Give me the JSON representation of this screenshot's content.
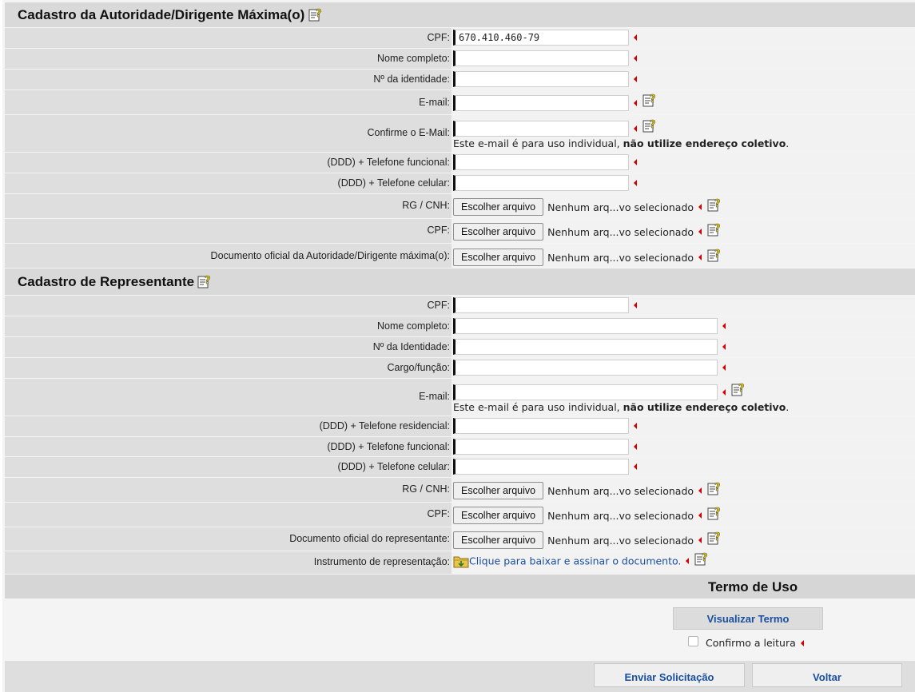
{
  "autoridade": {
    "title": "Cadastro da Autoridade/Dirigente Máxima(o)",
    "cpf_label": "CPF:",
    "cpf_value": "670.410.460-79",
    "nome_label": "Nome completo:",
    "identidade_label": "Nº da identidade:",
    "email_label": "E-mail:",
    "confirme_email_label": "Confirme o E-Mail:",
    "email_note_prefix": "Este e-mail é para uso individual, ",
    "email_note_bold": "não utilize endereço coletivo",
    "email_note_suffix": ".",
    "tel_funcional_label": "(DDD) + Telefone funcional:",
    "tel_celular_label": "(DDD) + Telefone celular:",
    "rg_label": "RG / CNH:",
    "cpf_doc_label": "CPF:",
    "doc_oficial_label": "Documento oficial da Autoridade/Dirigente máxima(o):"
  },
  "representante": {
    "title": "Cadastro de Representante",
    "cpf_label": "CPF:",
    "nome_label": "Nome completo:",
    "identidade_label": "Nº da Identidade:",
    "cargo_label": "Cargo/função:",
    "email_label": "E-mail:",
    "email_note_prefix": "Este e-mail é para uso individual, ",
    "email_note_bold": "não utilize endereço coletivo",
    "email_note_suffix": ".",
    "tel_residencial_label": "(DDD) + Telefone residencial:",
    "tel_funcional_label": "(DDD) + Telefone funcional:",
    "tel_celular_label": "(DDD) + Telefone celular:",
    "rg_label": "RG / CNH:",
    "cpf_doc_label": "CPF:",
    "doc_oficial_label": "Documento oficial do representante:",
    "instrumento_label": "Instrumento de representação:",
    "instrumento_link": "Clique para baixar e assinar o documento."
  },
  "file_input": {
    "button_label": "Escolher arquivo",
    "status_text": "Nenhum arq...vo selecionado"
  },
  "termo": {
    "title": "Termo de Uso",
    "visualizar_label": "Visualizar Termo",
    "confirmo_label": "Confirmo a leitura"
  },
  "footer": {
    "enviar_label": "Enviar Solicitação",
    "voltar_label": "Voltar"
  },
  "colors": {
    "header_bg": "#d9d9d9",
    "label_bg": "#dedede",
    "required_marker": "#d40000",
    "link": "#1a4fa0"
  },
  "icons": {
    "help": "help-notepad-icon",
    "required": "required-arrow-icon",
    "download": "download-folder-icon"
  }
}
